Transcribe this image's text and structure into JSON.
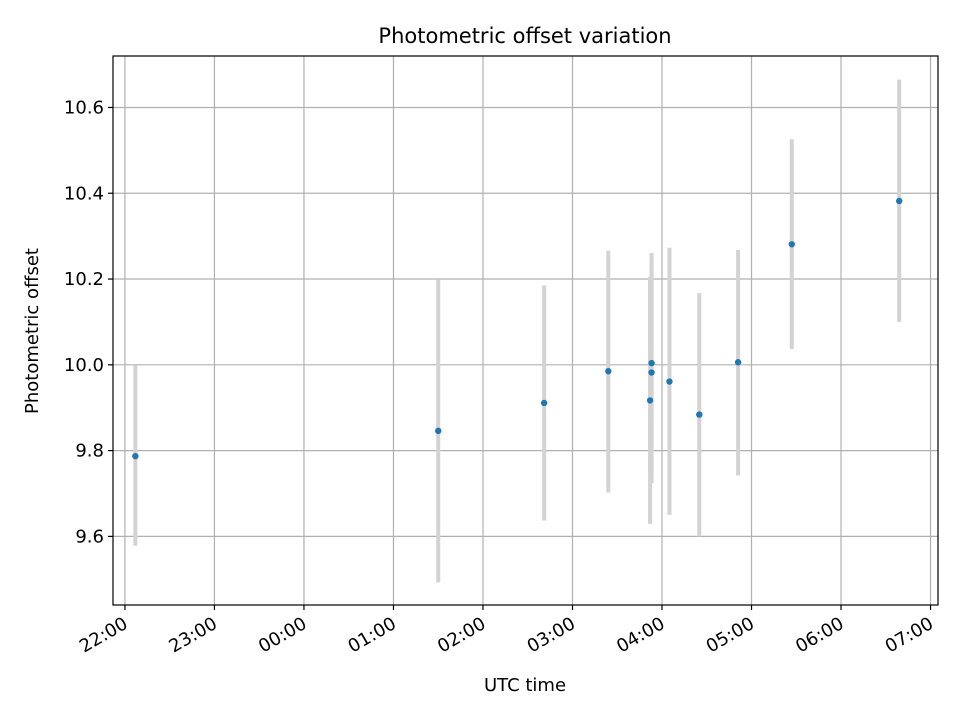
{
  "chart_data": {
    "type": "scatter",
    "title": "Photometric offset variation",
    "xlabel": "UTC time",
    "ylabel": "Photometric offset",
    "x_tick_labels": [
      "22:00",
      "23:00",
      "00:00",
      "01:00",
      "02:00",
      "03:00",
      "04:00",
      "05:00",
      "06:00",
      "07:00"
    ],
    "y_tick_labels": [
      "9.6",
      "9.8",
      "10.0",
      "10.2",
      "10.4",
      "10.6"
    ],
    "y_ticks": [
      9.6,
      9.8,
      10.0,
      10.2,
      10.4,
      10.6
    ],
    "xlim": [
      "21:52",
      "07:05"
    ],
    "ylim": [
      9.44,
      10.72
    ],
    "grid": true,
    "marker_color": "#1f77b4",
    "errorbar_color": "#d3d3d3",
    "points": [
      {
        "t": "22:07",
        "y": 9.787,
        "ylo": 9.578,
        "yhi": 9.998
      },
      {
        "t": "01:30",
        "y": 9.846,
        "ylo": 9.493,
        "yhi": 10.198
      },
      {
        "t": "02:41",
        "y": 9.911,
        "ylo": 9.637,
        "yhi": 10.185
      },
      {
        "t": "03:24",
        "y": 9.985,
        "ylo": 9.702,
        "yhi": 10.266
      },
      {
        "t": "03:52",
        "y": 9.917,
        "ylo": 9.629,
        "yhi": 10.205
      },
      {
        "t": "03:53",
        "y": 10.004,
        "ylo": 9.747,
        "yhi": 10.261
      },
      {
        "t": "03:53",
        "y": 9.982,
        "ylo": 9.724,
        "yhi": 10.24
      },
      {
        "t": "04:05",
        "y": 9.961,
        "ylo": 9.65,
        "yhi": 10.273
      },
      {
        "t": "04:25",
        "y": 9.884,
        "ylo": 9.6,
        "yhi": 10.167
      },
      {
        "t": "04:51",
        "y": 10.006,
        "ylo": 9.742,
        "yhi": 10.268
      },
      {
        "t": "05:27",
        "y": 10.281,
        "ylo": 10.037,
        "yhi": 10.526
      },
      {
        "t": "06:39",
        "y": 10.382,
        "ylo": 10.1,
        "yhi": 10.665
      }
    ]
  }
}
